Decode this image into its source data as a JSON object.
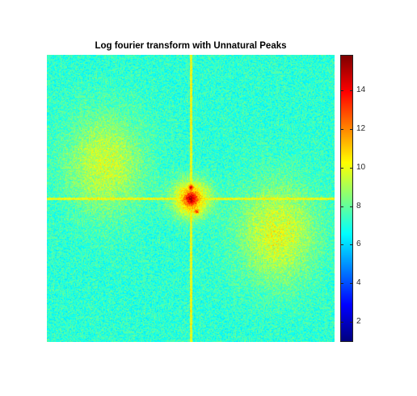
{
  "chart_data": {
    "type": "heatmap",
    "title": "Log fourier transform with Unnatural Peaks",
    "xlabel": "",
    "ylabel": "",
    "colormap": "jet",
    "color_range": [
      1,
      15.8
    ],
    "colorbar": {
      "ticks": [
        2,
        4,
        6,
        8,
        10,
        12,
        14
      ],
      "tick_labels": [
        "2",
        "4",
        "6",
        "8",
        "10",
        "12",
        "14"
      ]
    },
    "features": {
      "central_peak_value": 15.7,
      "background_mean_value": 7.2,
      "cross_axes_value": 10.5,
      "peak_offsets_fraction": [
        [
          0.02,
          0.045
        ],
        [
          0.0,
          -0.04
        ]
      ],
      "lobes": [
        {
          "center_fraction": [
            -0.3,
            -0.12
          ],
          "value": 9.5
        },
        {
          "center_fraction": [
            0.3,
            0.12
          ],
          "value": 9.8
        }
      ]
    }
  },
  "figure": {
    "background": "#ffffff"
  }
}
